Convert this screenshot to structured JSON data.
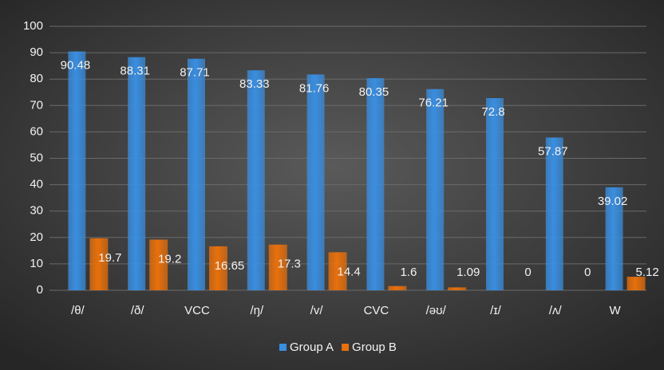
{
  "chart_data": {
    "type": "bar",
    "categories": [
      "/θ/",
      "/ð/",
      "VCC",
      "/ŋ/",
      "/v/",
      "CVC",
      "/əʊ/",
      "/ɪ/",
      "/ʌ/",
      "W"
    ],
    "series": [
      {
        "name": "Group A",
        "color": "#3a8ee0",
        "values": [
          90.48,
          88.31,
          87.71,
          83.33,
          81.76,
          80.35,
          76.21,
          72.8,
          57.87,
          39.02
        ]
      },
      {
        "name": "Group B",
        "color": "#e8700c",
        "values": [
          19.7,
          19.2,
          16.65,
          17.3,
          14.4,
          1.6,
          1.09,
          0,
          0,
          5.12
        ]
      }
    ],
    "ylim": [
      0,
      100
    ],
    "yticks": [
      0,
      10,
      20,
      30,
      40,
      50,
      60,
      70,
      80,
      90,
      100
    ],
    "grid": true,
    "legend": "bottom"
  }
}
